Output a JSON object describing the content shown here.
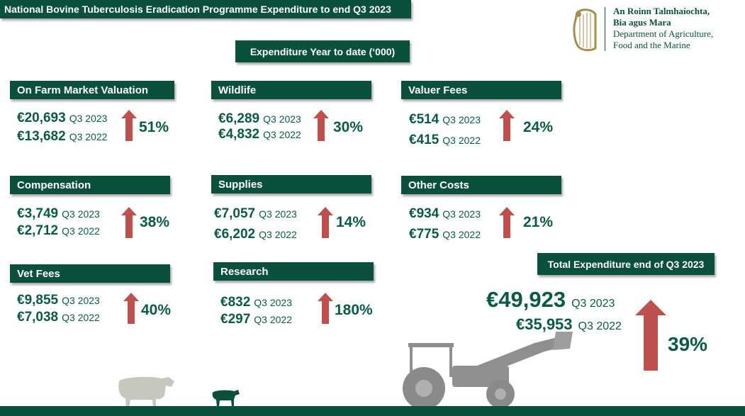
{
  "title": "National Bovine Tuberculosis  Eradication Programme Expenditure to end Q3 2023",
  "subtitle": "Expenditure Year to date (‘000)",
  "logo": {
    "line1": "An Roinn Talmhaíochta,",
    "line2": "Bia agus Mara",
    "line3": "Department of Agriculture,",
    "line4": "Food and the Marine",
    "icon": "harp-icon"
  },
  "categories": [
    {
      "name": "On Farm Market Valuation",
      "current": "€20,693",
      "current_period": "Q3 2023",
      "previous": "€13,682",
      "previous_period": "Q3 2022",
      "change": "51%"
    },
    {
      "name": "Wildlife",
      "current": "€6,289",
      "current_period": "Q3 2023",
      "previous": "€4,832",
      "previous_period": "Q3 2022",
      "change": "30%"
    },
    {
      "name": "Valuer Fees",
      "current": "€514",
      "current_period": "Q3 2023",
      "previous": "€415",
      "previous_period": "Q3 2022",
      "change": "24%"
    },
    {
      "name": "Compensation",
      "current": "€3,749",
      "current_period": "Q3 2023",
      "previous": "€2,712",
      "previous_period": "Q3 2022",
      "change": "38%"
    },
    {
      "name": "Supplies",
      "current": "€7,057",
      "current_period": "Q3 2023",
      "previous": "€6,202",
      "previous_period": "Q3 2022",
      "change": "14%"
    },
    {
      "name": "Other Costs",
      "current": "€934",
      "current_period": "Q3 2023",
      "previous": "€775",
      "previous_period": "Q3 2022",
      "change": "21%"
    },
    {
      "name": "Vet Fees",
      "current": "€9,855",
      "current_period": "Q3 2023",
      "previous": "€7,038",
      "previous_period": "Q3 2022",
      "change": "40%"
    },
    {
      "name": "Research",
      "current": "€832",
      "current_period": "Q3 2023",
      "previous": "€297",
      "previous_period": "Q3 2022",
      "change": "180%"
    }
  ],
  "total": {
    "label": "Total Expenditure end of Q3 2023",
    "current": "€49,923",
    "current_period": "Q3 2023",
    "previous": "€35,953",
    "previous_period": "Q3 2022",
    "change": "39%"
  },
  "colors": {
    "brand_green": "#0b4f3d",
    "text_green": "#0b5a45",
    "arrow_red": "#c0504d"
  }
}
